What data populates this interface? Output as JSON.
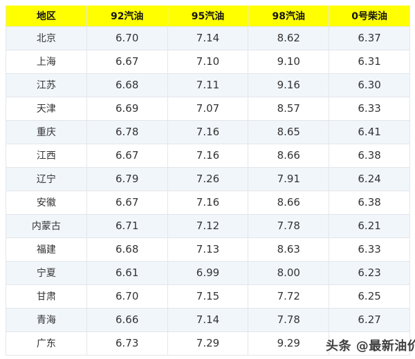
{
  "chart_data": {
    "type": "table",
    "columns": [
      "地区",
      "92汽油",
      "95汽油",
      "98汽油",
      "0号柴油"
    ],
    "rows": [
      [
        "北京",
        "6.70",
        "7.14",
        "8.62",
        "6.37"
      ],
      [
        "上海",
        "6.67",
        "7.10",
        "9.10",
        "6.31"
      ],
      [
        "江苏",
        "6.68",
        "7.11",
        "9.16",
        "6.30"
      ],
      [
        "天津",
        "6.69",
        "7.07",
        "8.57",
        "6.33"
      ],
      [
        "重庆",
        "6.78",
        "7.16",
        "8.65",
        "6.41"
      ],
      [
        "江西",
        "6.67",
        "7.16",
        "8.66",
        "6.38"
      ],
      [
        "辽宁",
        "6.79",
        "7.26",
        "7.91",
        "6.24"
      ],
      [
        "安徽",
        "6.67",
        "7.16",
        "8.66",
        "6.38"
      ],
      [
        "内蒙古",
        "6.71",
        "7.12",
        "7.78",
        "6.21"
      ],
      [
        "福建",
        "6.68",
        "7.13",
        "8.63",
        "6.33"
      ],
      [
        "宁夏",
        "6.61",
        "6.99",
        "8.00",
        "6.23"
      ],
      [
        "甘肃",
        "6.70",
        "7.15",
        "7.72",
        "6.25"
      ],
      [
        "青海",
        "6.66",
        "7.14",
        "7.78",
        "6.27"
      ],
      [
        "广东",
        "6.73",
        "7.29",
        "9.29",
        ""
      ]
    ],
    "layout": {
      "header_position": "top",
      "striped_rows": true,
      "grid": true
    }
  },
  "watermark": {
    "text": "头条 @最新油价"
  },
  "colors": {
    "header_bg": "#FFFF00",
    "row_alt_bg": "#F1F6FB",
    "row_bg": "#FFFFFF",
    "border": "#E3E6E9",
    "text": "#333333",
    "header_text": "#141414",
    "watermark_text": "#3F3F3F"
  }
}
